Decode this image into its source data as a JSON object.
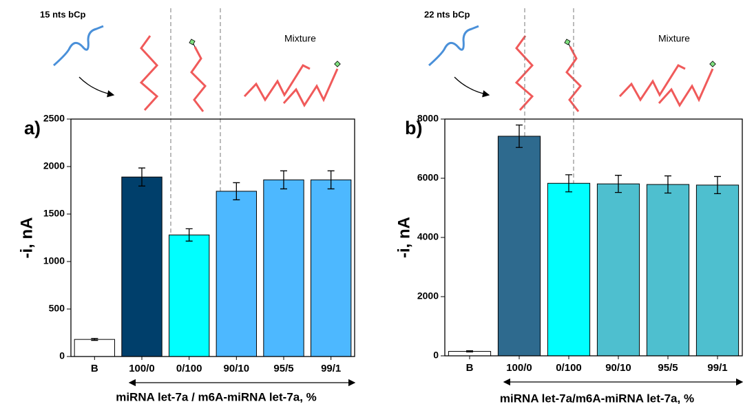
{
  "chart_data": [
    {
      "type": "bar",
      "panel_label": "a)",
      "title": "15 nts bCp",
      "annotation": "Mixture",
      "ylabel": "-i, nA",
      "xlabel": "miRNA let-7a / m6A-miRNA let-7a, %",
      "categories": [
        "B",
        "100/0",
        "0/100",
        "90/10",
        "95/5",
        "99/1"
      ],
      "values": [
        180,
        1890,
        1280,
        1740,
        1860,
        1860
      ],
      "errors": [
        10,
        95,
        65,
        90,
        95,
        95
      ],
      "colors": [
        "#ffffff",
        "#003f6b",
        "#00ffff",
        "#4db8ff",
        "#4db8ff",
        "#4db8ff"
      ],
      "ylim": [
        0,
        2500
      ],
      "yticks": [
        0,
        500,
        1000,
        1500,
        2000,
        2500
      ]
    },
    {
      "type": "bar",
      "panel_label": "b)",
      "title": "22 nts bCp",
      "annotation": "Mixture",
      "ylabel": "-i, nA",
      "xlabel": "miRNA let-7a/m6A-miRNA let-7a, %",
      "categories": [
        "B",
        "100/0",
        "0/100",
        "90/10",
        "95/5",
        "99/1"
      ],
      "values": [
        150,
        7420,
        5830,
        5810,
        5790,
        5770
      ],
      "errors": [
        20,
        380,
        290,
        290,
        290,
        290
      ],
      "colors": [
        "#ffffff",
        "#2e6a8e",
        "#00ffff",
        "#4ebfcf",
        "#4ebfcf",
        "#4ebfcf"
      ],
      "ylim": [
        0,
        8000
      ],
      "yticks": [
        0,
        2000,
        4000,
        6000,
        8000
      ]
    }
  ]
}
